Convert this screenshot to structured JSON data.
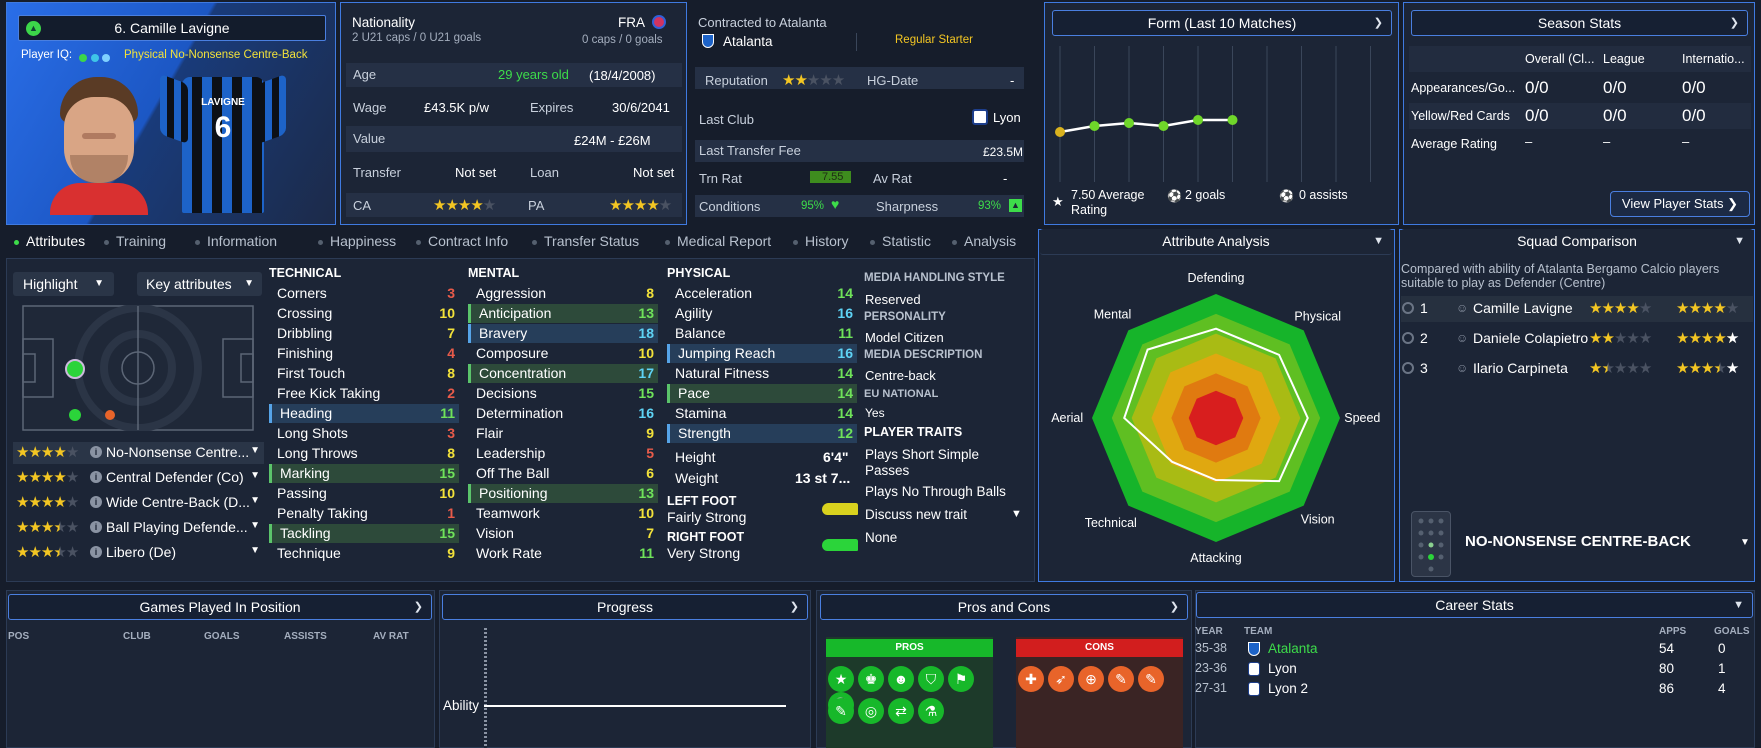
{
  "player": {
    "name": "6. Camille Lavigne",
    "iq_label": "Player IQ:",
    "role": "Physical No-Nonsense Centre-Back",
    "shirt_name": "LAVIGNE",
    "shirt_number": "6"
  },
  "info": {
    "nationality_label": "Nationality",
    "nationality_value": "FRA",
    "u21": "2 U21 caps / 0 U21 goals",
    "caps": "0 caps / 0 goals",
    "age_label": "Age",
    "age_value": "29 years old",
    "dob": "(18/4/2008)",
    "wage_label": "Wage",
    "wage_value": "£43.5K p/w",
    "expires_label": "Expires",
    "expires_value": "30/6/2041",
    "value_label": "Value",
    "value_value": "£24M - £26M",
    "transfer_label": "Transfer",
    "transfer_value": "Not set",
    "loan_label": "Loan",
    "loan_value": "Not set",
    "ca_label": "CA",
    "ca_stars": 4,
    "pa_label": "PA",
    "pa_stars": 4
  },
  "contract": {
    "title": "Contracted to Atalanta",
    "club": "Atalanta",
    "status": "Regular Starter",
    "reputation_label": "Reputation",
    "reputation_stars": 2,
    "hg_label": "HG-Date",
    "hg_value": "-",
    "last_club_label": "Last Club",
    "last_club_value": "Lyon",
    "last_fee_label": "Last Transfer Fee",
    "last_fee_value": "£23.5M",
    "trn_label": "Trn Rat",
    "trn_value": "7.55",
    "av_label": "Av Rat",
    "av_value": "-",
    "conditions_label": "Conditions",
    "conditions_value": "95%",
    "sharpness_label": "Sharpness",
    "sharpness_value": "93%"
  },
  "form": {
    "title": "Form (Last 10 Matches)",
    "values": [
      7.2,
      7.4,
      7.5,
      7.4,
      7.6,
      7.6
    ],
    "avg_value": "7.50 Average",
    "avg_suffix": "Rating",
    "goals": "2 goals",
    "assists": "0 assists"
  },
  "season": {
    "title": "Season Stats",
    "cols": [
      "Overall (Cl...",
      "League",
      "Internatio..."
    ],
    "rows": [
      {
        "label": "Appearances/Go...",
        "vals": [
          "0/0",
          "0/0",
          "0/0"
        ]
      },
      {
        "label": "Yellow/Red Cards",
        "vals": [
          "0/0",
          "0/0",
          "0/0"
        ]
      },
      {
        "label": "Average Rating",
        "vals": [
          "–",
          "–",
          "–"
        ]
      }
    ],
    "button": "View Player Stats"
  },
  "tabs": [
    "Attributes",
    "Training",
    "Information",
    "Happiness",
    "Contract Info",
    "Transfer Status",
    "Medical Report",
    "History",
    "Statistic",
    "Analysis"
  ],
  "controls": {
    "highlight": "Highlight",
    "key_attributes": "Key attributes"
  },
  "roles": [
    {
      "stars": 4,
      "label": "No-Nonsense Centre..."
    },
    {
      "stars": 4,
      "label": "Central Defender (Co)"
    },
    {
      "stars": 4,
      "label": "Wide Centre-Back (D..."
    },
    {
      "stars": 3.5,
      "label": "Ball Playing Defende..."
    },
    {
      "stars": 3.5,
      "label": "Libero (De)"
    }
  ],
  "technical": {
    "title": "TECHNICAL",
    "items": [
      {
        "name": "Corners",
        "value": "3",
        "c": "r",
        "h": ""
      },
      {
        "name": "Crossing",
        "value": "10",
        "c": "y",
        "h": ""
      },
      {
        "name": "Dribbling",
        "value": "7",
        "c": "y",
        "h": ""
      },
      {
        "name": "Finishing",
        "value": "4",
        "c": "r",
        "h": ""
      },
      {
        "name": "First Touch",
        "value": "8",
        "c": "y",
        "h": ""
      },
      {
        "name": "Free Kick Taking",
        "value": "2",
        "c": "r",
        "h": ""
      },
      {
        "name": "Heading",
        "value": "11",
        "c": "g",
        "h": "b"
      },
      {
        "name": "Long Shots",
        "value": "3",
        "c": "r",
        "h": ""
      },
      {
        "name": "Long Throws",
        "value": "8",
        "c": "y",
        "h": ""
      },
      {
        "name": "Marking",
        "value": "15",
        "c": "g",
        "h": "g"
      },
      {
        "name": "Passing",
        "value": "10",
        "c": "y",
        "h": ""
      },
      {
        "name": "Penalty Taking",
        "value": "1",
        "c": "r",
        "h": ""
      },
      {
        "name": "Tackling",
        "value": "15",
        "c": "g",
        "h": "g"
      },
      {
        "name": "Technique",
        "value": "9",
        "c": "y",
        "h": ""
      }
    ]
  },
  "mental": {
    "title": "MENTAL",
    "items": [
      {
        "name": "Aggression",
        "value": "8",
        "c": "y",
        "h": ""
      },
      {
        "name": "Anticipation",
        "value": "13",
        "c": "g",
        "h": "g"
      },
      {
        "name": "Bravery",
        "value": "18",
        "c": "c",
        "h": "b"
      },
      {
        "name": "Composure",
        "value": "10",
        "c": "y",
        "h": ""
      },
      {
        "name": "Concentration",
        "value": "17",
        "c": "c",
        "h": "g"
      },
      {
        "name": "Decisions",
        "value": "15",
        "c": "g",
        "h": ""
      },
      {
        "name": "Determination",
        "value": "16",
        "c": "c",
        "h": ""
      },
      {
        "name": "Flair",
        "value": "9",
        "c": "y",
        "h": ""
      },
      {
        "name": "Leadership",
        "value": "5",
        "c": "r",
        "h": ""
      },
      {
        "name": "Off The Ball",
        "value": "6",
        "c": "y",
        "h": ""
      },
      {
        "name": "Positioning",
        "value": "13",
        "c": "g",
        "h": "g"
      },
      {
        "name": "Teamwork",
        "value": "10",
        "c": "y",
        "h": ""
      },
      {
        "name": "Vision",
        "value": "7",
        "c": "y",
        "h": ""
      },
      {
        "name": "Work Rate",
        "value": "11",
        "c": "g",
        "h": ""
      }
    ]
  },
  "physical": {
    "title": "PHYSICAL",
    "items": [
      {
        "name": "Acceleration",
        "value": "14",
        "c": "g",
        "h": ""
      },
      {
        "name": "Agility",
        "value": "16",
        "c": "c",
        "h": ""
      },
      {
        "name": "Balance",
        "value": "11",
        "c": "g",
        "h": ""
      },
      {
        "name": "Jumping Reach",
        "value": "16",
        "c": "c",
        "h": "b"
      },
      {
        "name": "Natural Fitness",
        "value": "14",
        "c": "g",
        "h": ""
      },
      {
        "name": "Pace",
        "value": "14",
        "c": "g",
        "h": "g"
      },
      {
        "name": "Stamina",
        "value": "14",
        "c": "g",
        "h": ""
      },
      {
        "name": "Strength",
        "value": "12",
        "c": "g",
        "h": "b"
      }
    ],
    "height_label": "Height",
    "height_value": "6'4\"",
    "weight_label": "Weight",
    "weight_value": "13 st 7...",
    "left_foot_label": "LEFT FOOT",
    "left_foot_value": "Fairly Strong",
    "right_foot_label": "RIGHT FOOT",
    "right_foot_value": "Very Strong"
  },
  "media": {
    "style_label": "MEDIA HANDLING STYLE",
    "style_value": "Reserved",
    "personality_label": "PERSONALITY",
    "personality_value": "Model Citizen",
    "desc_label": "MEDIA DESCRIPTION",
    "desc_value": "Centre-back",
    "eu_label": "EU NATIONAL",
    "eu_value": "Yes",
    "traits_label": "PLAYER TRAITS",
    "traits": [
      "Plays Short Simple Passes",
      "Plays No Through Balls"
    ],
    "discuss": "Discuss new trait",
    "none": "None"
  },
  "analysis": {
    "title": "Attribute Analysis",
    "axes": [
      "Defending",
      "Physical",
      "Speed",
      "Vision",
      "Attacking",
      "Technical",
      "Aerial",
      "Mental"
    ],
    "values": [
      0.72,
      0.72,
      0.74,
      0.72,
      0.5,
      0.5,
      0.74,
      0.78
    ]
  },
  "squad": {
    "title": "Squad Comparison",
    "desc": "Compared with ability of Atalanta Bergamo Calcio players suitable to play as Defender (Centre)",
    "rows": [
      {
        "rank": "1",
        "name": "Camille Lavigne",
        "ca": 4,
        "pa": 4
      },
      {
        "rank": "2",
        "name": "Daniele Colapietro",
        "ca": 2,
        "pa": 4.5
      },
      {
        "rank": "3",
        "name": "Ilario Carpineta",
        "ca": 1.5,
        "pa": 3.5
      }
    ],
    "role": "NO-NONSENSE CENTRE-BACK"
  },
  "games": {
    "title": "Games Played In Position",
    "cols": [
      "POS",
      "CLUB",
      "GOALS",
      "ASSISTS",
      "AV RAT"
    ]
  },
  "progress": {
    "title": "Progress",
    "axis": "Ability"
  },
  "proscons": {
    "title": "Pros and Cons",
    "pros": "PROS",
    "cons": "CONS"
  },
  "career": {
    "title": "Career Stats",
    "cols": [
      "YEAR",
      "TEAM",
      "APPS",
      "GOALS"
    ],
    "rows": [
      {
        "year": "35-38",
        "team": "Atalanta",
        "apps": "54",
        "goals": "0"
      },
      {
        "year": "23-36",
        "team": "Lyon",
        "apps": "80",
        "goals": "1"
      },
      {
        "year": "27-31",
        "team": "Lyon 2",
        "apps": "86",
        "goals": "4"
      }
    ]
  }
}
